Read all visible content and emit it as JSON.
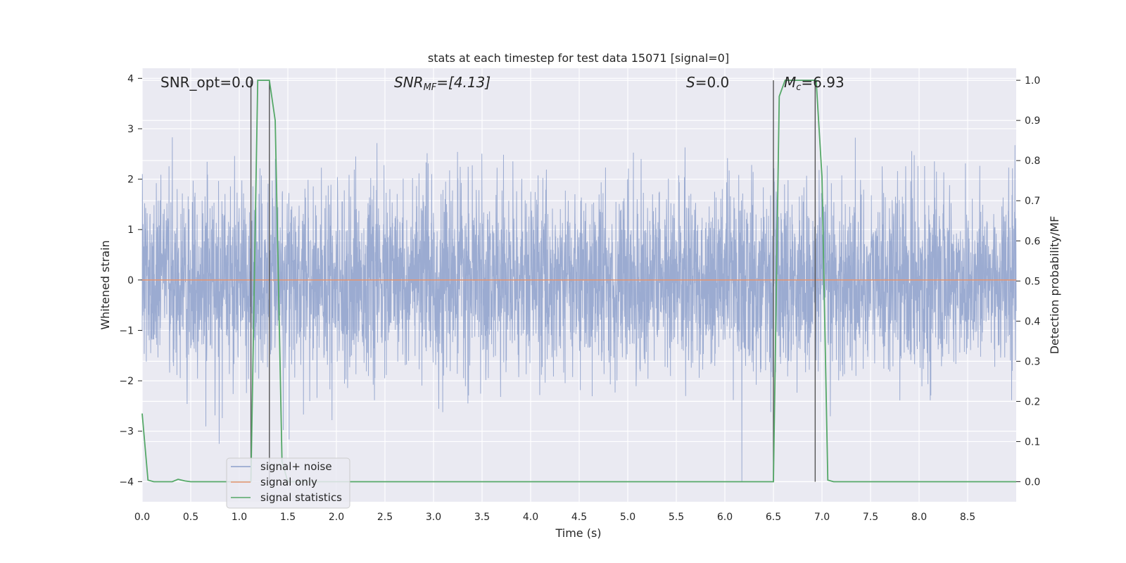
{
  "chart_data": {
    "type": "line",
    "title": "stats at each timestep for test data 15071 [signal=0]",
    "xlabel": "Time (s)",
    "ylabel_left": "Whitened strain",
    "ylabel_right": "Detection probability/MF",
    "xlim": [
      0.0,
      9.0
    ],
    "ylim_left": [
      -4.4,
      4.2
    ],
    "ylim_right": [
      -0.05,
      1.03
    ],
    "grid": true,
    "legend_position": "lower-left",
    "x_ticks": [
      "0.0",
      "0.5",
      "1.0",
      "1.5",
      "2.0",
      "2.5",
      "3.0",
      "3.5",
      "4.0",
      "4.5",
      "5.0",
      "5.5",
      "6.0",
      "6.5",
      "7.0",
      "7.5",
      "8.0",
      "8.5"
    ],
    "y_ticks_left": [
      "4",
      "3",
      "2",
      "1",
      "0",
      "−1",
      "−2",
      "−3",
      "−4"
    ],
    "y_ticks_right": [
      "1.0",
      "0.9",
      "0.8",
      "0.7",
      "0.6",
      "0.5",
      "0.4",
      "0.3",
      "0.2",
      "0.1",
      "0.0"
    ],
    "annotations": {
      "snr_opt": "SNR_opt=0.0",
      "snr_mf_main": "SNR",
      "snr_mf_sub": "MF",
      "snr_mf_rest": "=[4.13]",
      "s_main": "S",
      "s_rest": "=0.0",
      "mc_main": "M",
      "mc_sub": "c",
      "mc_rest": "=6.93"
    },
    "series": [
      {
        "name": "signal+ noise",
        "axis": "left",
        "color": "#8da0cb",
        "kind": "noise",
        "std": 0.9,
        "x_range": [
          0.0,
          9.0
        ]
      },
      {
        "name": "signal only",
        "axis": "left",
        "color": "#e5946f",
        "x": [
          0.0,
          9.0
        ],
        "y": [
          0.0,
          0.0
        ]
      },
      {
        "name": "signal statistics",
        "axis": "right",
        "color": "#55a868",
        "x": [
          0.0,
          0.06,
          0.12,
          0.25,
          0.31,
          0.37,
          0.44,
          0.5,
          1.12,
          1.19,
          1.25,
          1.31,
          1.37,
          1.44,
          1.5,
          6.5,
          6.56,
          6.62,
          6.69,
          6.75,
          6.81,
          6.87,
          6.94,
          7.0,
          7.06,
          7.12,
          7.19,
          9.0
        ],
        "y": [
          0.17,
          0.004,
          0.0,
          0.0,
          0.0,
          0.006,
          0.002,
          0.0,
          0.0,
          1.0,
          1.0,
          1.0,
          0.9,
          0.05,
          0.0,
          0.0,
          0.96,
          1.0,
          1.0,
          1.0,
          1.0,
          1.0,
          1.0,
          0.76,
          0.004,
          0.0,
          0.0,
          0.0
        ]
      }
    ],
    "vertical_lines": [
      1.12,
      1.31,
      6.5,
      6.93
    ],
    "legend": [
      "signal+ noise",
      "signal only",
      "signal statistics"
    ]
  }
}
